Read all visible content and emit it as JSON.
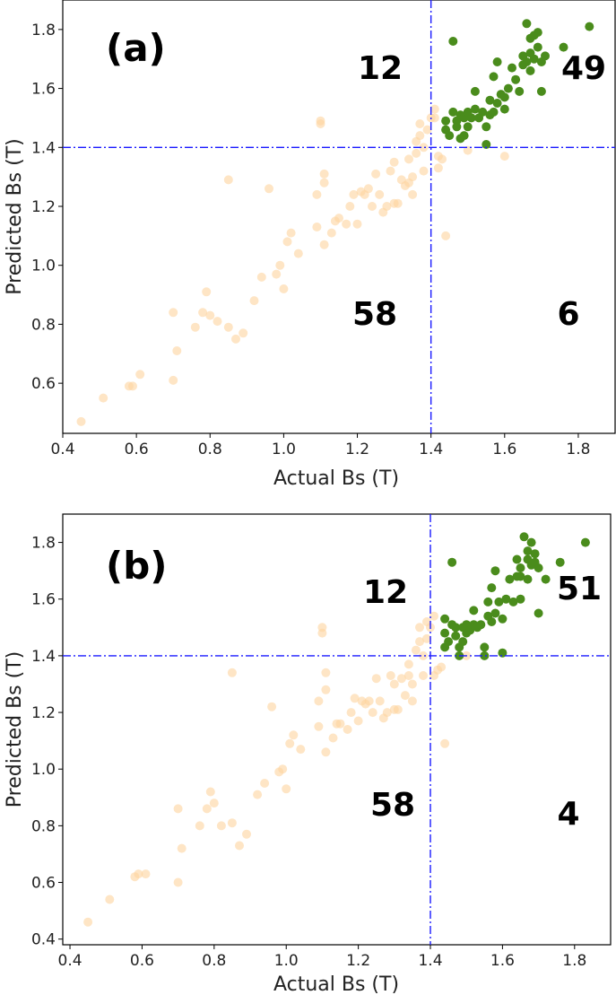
{
  "colors": {
    "below_threshold": "#fdd49e",
    "above_threshold": "#4a8c1c",
    "threshold_line": "#1a1aff",
    "axes": "#000000"
  },
  "chart_data": [
    {
      "type": "scatter",
      "panel": "(a)",
      "xlabel": "Actual Bs (T)",
      "ylabel": "Predicted Bs (T)",
      "xlim": [
        0.4,
        1.9
      ],
      "ylim": [
        0.43,
        1.9
      ],
      "xticks": [
        "0.4",
        "0.6",
        "0.8",
        "1.0",
        "1.2",
        "1.4",
        "1.6",
        "1.8"
      ],
      "yticks": [
        "0.6",
        "0.8",
        "1.0",
        "1.2",
        "1.4",
        "1.6",
        "1.8"
      ],
      "threshold": {
        "x": 1.4,
        "y": 1.4
      },
      "grid": false,
      "quadrant_counts": {
        "top_left": "12",
        "top_right": "49",
        "bottom_left": "58",
        "bottom_right": "6"
      },
      "series": [
        {
          "color_key": "below_threshold",
          "points": [
            [
              0.45,
              0.47
            ],
            [
              0.51,
              0.55
            ],
            [
              0.58,
              0.59
            ],
            [
              0.59,
              0.59
            ],
            [
              0.61,
              0.63
            ],
            [
              0.7,
              0.61
            ],
            [
              0.7,
              0.84
            ],
            [
              0.71,
              0.71
            ],
            [
              0.76,
              0.79
            ],
            [
              0.78,
              0.84
            ],
            [
              0.79,
              0.91
            ],
            [
              0.8,
              0.83
            ],
            [
              0.82,
              0.81
            ],
            [
              0.85,
              0.79
            ],
            [
              0.85,
              1.29
            ],
            [
              0.87,
              0.75
            ],
            [
              0.89,
              0.77
            ],
            [
              0.92,
              0.88
            ],
            [
              0.94,
              0.96
            ],
            [
              0.96,
              1.26
            ],
            [
              0.98,
              0.97
            ],
            [
              0.99,
              1.0
            ],
            [
              1.0,
              0.92
            ],
            [
              1.01,
              1.08
            ],
            [
              1.02,
              1.11
            ],
            [
              1.04,
              1.04
            ],
            [
              1.09,
              1.13
            ],
            [
              1.09,
              1.24
            ],
            [
              1.1,
              1.48
            ],
            [
              1.1,
              1.49
            ],
            [
              1.11,
              1.07
            ],
            [
              1.11,
              1.28
            ],
            [
              1.11,
              1.31
            ],
            [
              1.13,
              1.11
            ],
            [
              1.14,
              1.15
            ],
            [
              1.15,
              1.16
            ],
            [
              1.17,
              1.14
            ],
            [
              1.18,
              1.2
            ],
            [
              1.19,
              1.24
            ],
            [
              1.2,
              1.14
            ],
            [
              1.21,
              1.25
            ],
            [
              1.22,
              1.24
            ],
            [
              1.23,
              1.26
            ],
            [
              1.24,
              1.2
            ],
            [
              1.25,
              1.31
            ],
            [
              1.26,
              1.24
            ],
            [
              1.27,
              1.18
            ],
            [
              1.28,
              1.2
            ],
            [
              1.29,
              1.32
            ],
            [
              1.3,
              1.21
            ],
            [
              1.3,
              1.35
            ],
            [
              1.31,
              1.21
            ],
            [
              1.32,
              1.29
            ],
            [
              1.33,
              1.27
            ],
            [
              1.34,
              1.28
            ],
            [
              1.34,
              1.36
            ],
            [
              1.35,
              1.24
            ],
            [
              1.35,
              1.3
            ],
            [
              1.36,
              1.38
            ],
            [
              1.36,
              1.42
            ],
            [
              1.37,
              1.44
            ],
            [
              1.37,
              1.48
            ],
            [
              1.38,
              1.32
            ],
            [
              1.38,
              1.4
            ],
            [
              1.39,
              1.46
            ],
            [
              1.4,
              1.5
            ],
            [
              1.41,
              1.5
            ],
            [
              1.41,
              1.53
            ],
            [
              1.42,
              1.33
            ],
            [
              1.42,
              1.37
            ],
            [
              1.43,
              1.36
            ],
            [
              1.44,
              1.1
            ],
            [
              1.5,
              1.39
            ],
            [
              1.6,
              1.37
            ]
          ]
        },
        {
          "color_key": "above_threshold",
          "points": [
            [
              1.44,
              1.46
            ],
            [
              1.44,
              1.49
            ],
            [
              1.45,
              1.44
            ],
            [
              1.46,
              1.52
            ],
            [
              1.46,
              1.76
            ],
            [
              1.47,
              1.47
            ],
            [
              1.47,
              1.49
            ],
            [
              1.48,
              1.43
            ],
            [
              1.48,
              1.51
            ],
            [
              1.49,
              1.44
            ],
            [
              1.49,
              1.5
            ],
            [
              1.5,
              1.47
            ],
            [
              1.5,
              1.52
            ],
            [
              1.51,
              1.5
            ],
            [
              1.52,
              1.53
            ],
            [
              1.52,
              1.59
            ],
            [
              1.53,
              1.5
            ],
            [
              1.54,
              1.52
            ],
            [
              1.55,
              1.41
            ],
            [
              1.55,
              1.47
            ],
            [
              1.56,
              1.51
            ],
            [
              1.56,
              1.56
            ],
            [
              1.57,
              1.52
            ],
            [
              1.57,
              1.64
            ],
            [
              1.58,
              1.55
            ],
            [
              1.58,
              1.69
            ],
            [
              1.59,
              1.58
            ],
            [
              1.6,
              1.53
            ],
            [
              1.6,
              1.57
            ],
            [
              1.61,
              1.6
            ],
            [
              1.62,
              1.67
            ],
            [
              1.63,
              1.63
            ],
            [
              1.64,
              1.59
            ],
            [
              1.65,
              1.68
            ],
            [
              1.65,
              1.71
            ],
            [
              1.66,
              1.69
            ],
            [
              1.66,
              1.82
            ],
            [
              1.67,
              1.66
            ],
            [
              1.67,
              1.72
            ],
            [
              1.67,
              1.77
            ],
            [
              1.68,
              1.7
            ],
            [
              1.68,
              1.78
            ],
            [
              1.69,
              1.74
            ],
            [
              1.69,
              1.79
            ],
            [
              1.7,
              1.59
            ],
            [
              1.7,
              1.69
            ],
            [
              1.71,
              1.71
            ],
            [
              1.76,
              1.74
            ],
            [
              1.83,
              1.81
            ]
          ]
        }
      ]
    },
    {
      "type": "scatter",
      "panel": "(b)",
      "xlabel": "Actual Bs (T)",
      "ylabel": "Predicted Bs (T)",
      "xlim": [
        0.38,
        1.9
      ],
      "ylim": [
        0.38,
        1.9
      ],
      "xticks": [
        "0.4",
        "0.6",
        "0.8",
        "1.0",
        "1.2",
        "1.4",
        "1.6",
        "1.8"
      ],
      "yticks": [
        "0.4",
        "0.6",
        "0.8",
        "1.0",
        "1.2",
        "1.4",
        "1.6",
        "1.8"
      ],
      "threshold": {
        "x": 1.4,
        "y": 1.4
      },
      "grid": false,
      "quadrant_counts": {
        "top_left": "12",
        "top_right": "51",
        "bottom_left": "58",
        "bottom_right": "4"
      },
      "series": [
        {
          "color_key": "below_threshold",
          "points": [
            [
              0.45,
              0.46
            ],
            [
              0.51,
              0.54
            ],
            [
              0.58,
              0.62
            ],
            [
              0.59,
              0.63
            ],
            [
              0.61,
              0.63
            ],
            [
              0.7,
              0.6
            ],
            [
              0.7,
              0.86
            ],
            [
              0.71,
              0.72
            ],
            [
              0.76,
              0.8
            ],
            [
              0.78,
              0.86
            ],
            [
              0.79,
              0.92
            ],
            [
              0.8,
              0.88
            ],
            [
              0.82,
              0.8
            ],
            [
              0.85,
              0.81
            ],
            [
              0.85,
              1.34
            ],
            [
              0.87,
              0.73
            ],
            [
              0.89,
              0.77
            ],
            [
              0.92,
              0.91
            ],
            [
              0.94,
              0.95
            ],
            [
              0.96,
              1.22
            ],
            [
              0.98,
              0.99
            ],
            [
              0.99,
              1.0
            ],
            [
              1.0,
              0.93
            ],
            [
              1.01,
              1.09
            ],
            [
              1.02,
              1.12
            ],
            [
              1.04,
              1.07
            ],
            [
              1.09,
              1.15
            ],
            [
              1.09,
              1.24
            ],
            [
              1.1,
              1.48
            ],
            [
              1.1,
              1.5
            ],
            [
              1.11,
              1.06
            ],
            [
              1.11,
              1.28
            ],
            [
              1.11,
              1.34
            ],
            [
              1.13,
              1.11
            ],
            [
              1.14,
              1.16
            ],
            [
              1.15,
              1.16
            ],
            [
              1.17,
              1.14
            ],
            [
              1.18,
              1.2
            ],
            [
              1.19,
              1.25
            ],
            [
              1.2,
              1.17
            ],
            [
              1.21,
              1.24
            ],
            [
              1.22,
              1.23
            ],
            [
              1.23,
              1.24
            ],
            [
              1.24,
              1.2
            ],
            [
              1.25,
              1.32
            ],
            [
              1.26,
              1.24
            ],
            [
              1.27,
              1.18
            ],
            [
              1.28,
              1.2
            ],
            [
              1.29,
              1.33
            ],
            [
              1.3,
              1.21
            ],
            [
              1.3,
              1.3
            ],
            [
              1.31,
              1.21
            ],
            [
              1.32,
              1.32
            ],
            [
              1.33,
              1.26
            ],
            [
              1.34,
              1.33
            ],
            [
              1.34,
              1.37
            ],
            [
              1.35,
              1.24
            ],
            [
              1.35,
              1.3
            ],
            [
              1.36,
              1.42
            ],
            [
              1.37,
              1.45
            ],
            [
              1.37,
              1.5
            ],
            [
              1.38,
              1.33
            ],
            [
              1.38,
              1.4
            ],
            [
              1.39,
              1.46
            ],
            [
              1.39,
              1.52
            ],
            [
              1.4,
              1.5
            ],
            [
              1.41,
              1.54
            ],
            [
              1.41,
              1.33
            ],
            [
              1.42,
              1.35
            ],
            [
              1.43,
              1.36
            ],
            [
              1.44,
              1.09
            ],
            [
              1.5,
              1.4
            ]
          ]
        },
        {
          "color_key": "above_threshold",
          "points": [
            [
              1.44,
              1.43
            ],
            [
              1.44,
              1.48
            ],
            [
              1.44,
              1.53
            ],
            [
              1.45,
              1.45
            ],
            [
              1.46,
              1.51
            ],
            [
              1.46,
              1.73
            ],
            [
              1.47,
              1.47
            ],
            [
              1.47,
              1.5
            ],
            [
              1.48,
              1.43
            ],
            [
              1.48,
              1.4
            ],
            [
              1.49,
              1.45
            ],
            [
              1.49,
              1.5
            ],
            [
              1.5,
              1.48
            ],
            [
              1.5,
              1.51
            ],
            [
              1.51,
              1.49
            ],
            [
              1.52,
              1.51
            ],
            [
              1.52,
              1.56
            ],
            [
              1.53,
              1.5
            ],
            [
              1.54,
              1.51
            ],
            [
              1.55,
              1.4
            ],
            [
              1.55,
              1.43
            ],
            [
              1.56,
              1.54
            ],
            [
              1.56,
              1.59
            ],
            [
              1.57,
              1.52
            ],
            [
              1.57,
              1.64
            ],
            [
              1.58,
              1.55
            ],
            [
              1.58,
              1.7
            ],
            [
              1.59,
              1.59
            ],
            [
              1.6,
              1.41
            ],
            [
              1.6,
              1.53
            ],
            [
              1.61,
              1.6
            ],
            [
              1.62,
              1.67
            ],
            [
              1.63,
              1.59
            ],
            [
              1.64,
              1.74
            ],
            [
              1.64,
              1.68
            ],
            [
              1.65,
              1.68
            ],
            [
              1.65,
              1.71
            ],
            [
              1.66,
              1.82
            ],
            [
              1.67,
              1.67
            ],
            [
              1.67,
              1.74
            ],
            [
              1.67,
              1.77
            ],
            [
              1.68,
              1.72
            ],
            [
              1.68,
              1.8
            ],
            [
              1.69,
              1.73
            ],
            [
              1.69,
              1.76
            ],
            [
              1.7,
              1.55
            ],
            [
              1.7,
              1.71
            ],
            [
              1.72,
              1.67
            ],
            [
              1.76,
              1.73
            ],
            [
              1.83,
              1.8
            ],
            [
              1.65,
              1.6
            ]
          ]
        }
      ]
    }
  ]
}
